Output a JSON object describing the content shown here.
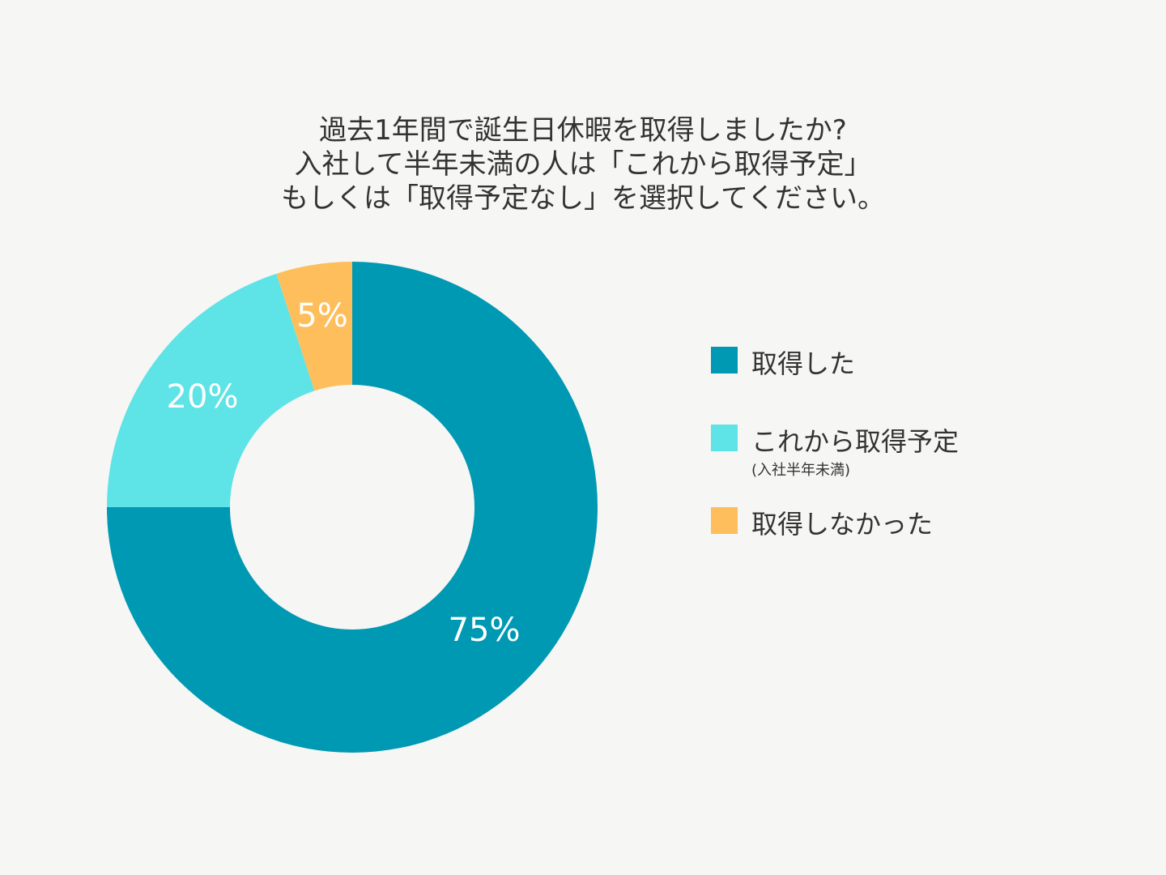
{
  "colors": {
    "background": "#f6f6f4",
    "text": "#333333",
    "label": "#ffffff"
  },
  "chart_data": {
    "type": "pie",
    "style": "donut",
    "title_lines": [
      "過去1年間で誕生日休暇を取得しましたか?",
      "入社して半年未満の人は「これから取得予定」",
      "もしくは「取得予定なし」を選択してください。"
    ],
    "categories": [
      "取得した",
      "これから取得予定",
      "取得しなかった"
    ],
    "values": [
      75,
      20,
      5
    ],
    "data_labels": [
      "75%",
      "20%",
      "5%"
    ],
    "colors": [
      "#0099b3",
      "#5ee3e6",
      "#ffbe5c"
    ],
    "legend": {
      "placement": "right",
      "entries": [
        {
          "label": "取得した",
          "note": ""
        },
        {
          "label": "これから取得予定",
          "note": "(入社半年未満)"
        },
        {
          "label": "取得しなかった",
          "note": ""
        }
      ]
    }
  }
}
